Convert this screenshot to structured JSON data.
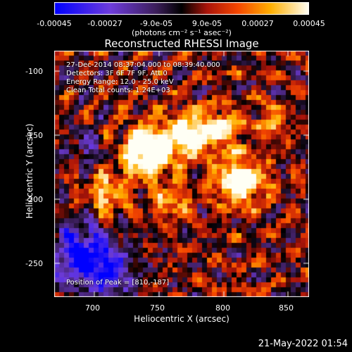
{
  "colorbar": {
    "tick_labels": [
      "-0.00045",
      "-0.00027",
      "-9.0e-05",
      "9.0e-05",
      "0.00027",
      "0.00045"
    ],
    "units": "(photons cm⁻² s⁻¹ asec⁻²)"
  },
  "plot": {
    "title": "Reconstructed RHESSI Image",
    "x_label": "Heliocentric X (arcsec)",
    "y_label": "Heliocentric Y (arcsec)",
    "x_ticks": [
      "700",
      "750",
      "800",
      "850"
    ],
    "y_ticks": [
      "-100",
      "-150",
      "-200",
      "-250"
    ],
    "x_range": [
      667,
      860
    ],
    "y_range": [
      -279,
      -85
    ]
  },
  "overlay": {
    "time_range": "27-Dec-2014 08:37:04.000 to 08:39:40.000",
    "detectors": "Detectors: 3F 6F 7F 9F, Att 0",
    "energy_range": "Energy Range: 12.0 - 25.0 keV",
    "method_counts": "Clean     Total counts: 1.24E+03",
    "peak_position": "Position of Peak = [810,-187]"
  },
  "footer": {
    "datestamp": "21-May-2022 01:54"
  }
}
